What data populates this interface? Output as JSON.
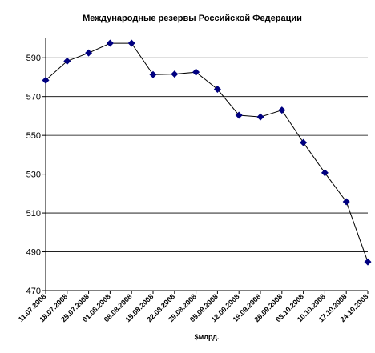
{
  "chart_data": {
    "type": "line",
    "title": "Международные резервы Российской Федерации",
    "xlabel": "$млрд.",
    "ylabel": "",
    "ylim": [
      470,
      600
    ],
    "yticks": [
      470,
      490,
      510,
      530,
      550,
      570,
      590
    ],
    "grid": "horizontal",
    "legend": "none",
    "categories": [
      "11.07.2008",
      "18.07.2008",
      "25.07.2008",
      "01.08.2008",
      "08.08.2008",
      "15.08.2008",
      "22.08.2008",
      "29.08.2008",
      "05.09.2008",
      "12.09.2008",
      "19.09.2008",
      "26.09.2008",
      "03.10.2008",
      "10.10.2008",
      "17.10.2008",
      "24.10.2008"
    ],
    "series": [
      {
        "values": [
          578.4,
          588.3,
          592.5,
          597.5,
          597.5,
          581.3,
          581.6,
          582.6,
          573.8,
          560.4,
          559.5,
          563.0,
          546.3,
          530.7,
          515.8,
          484.8
        ],
        "color": "#000080"
      }
    ]
  }
}
